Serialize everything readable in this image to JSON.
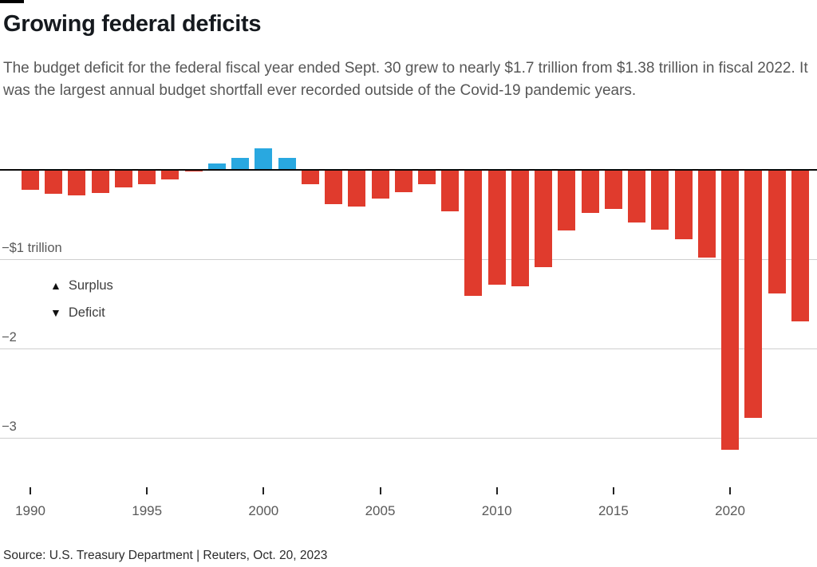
{
  "header": {
    "title": "Growing federal deficits",
    "subtitle": "The budget deficit for the federal fiscal year ended Sept. 30 grew to nearly $1.7 trillion from $1.38 trillion in fiscal 2022. It was the largest annual budget shortfall ever recorded outside of the Covid-19 pandemic years."
  },
  "legend": {
    "surplus_marker": "▲",
    "surplus_label": "Surplus",
    "deficit_marker": "▼",
    "deficit_label": "Deficit"
  },
  "footer": {
    "source": "Source: U.S. Treasury Department | Reuters, Oct. 20, 2023"
  },
  "colors": {
    "deficit": "#e03b2d",
    "surplus": "#29a8e0",
    "gridline": "#cfcfcf",
    "zero_line": "#0a0a0a",
    "axis_text": "#595959"
  },
  "chart_data": {
    "type": "bar",
    "title": "Growing federal deficits",
    "xlabel": "",
    "ylabel": "",
    "units": "trillion USD",
    "ylim": [
      -3.4,
      0.4
    ],
    "x": [
      1990,
      1991,
      1992,
      1993,
      1994,
      1995,
      1996,
      1997,
      1998,
      1999,
      2000,
      2001,
      2002,
      2003,
      2004,
      2005,
      2006,
      2007,
      2008,
      2009,
      2010,
      2011,
      2012,
      2013,
      2014,
      2015,
      2016,
      2017,
      2018,
      2019,
      2020,
      2021,
      2022,
      2023
    ],
    "values": [
      -0.22,
      -0.27,
      -0.29,
      -0.26,
      -0.2,
      -0.16,
      -0.11,
      -0.02,
      0.07,
      0.13,
      0.24,
      0.13,
      -0.16,
      -0.38,
      -0.41,
      -0.32,
      -0.25,
      -0.16,
      -0.46,
      -1.41,
      -1.29,
      -1.3,
      -1.09,
      -0.68,
      -0.48,
      -0.44,
      -0.59,
      -0.67,
      -0.78,
      -0.98,
      -3.13,
      -2.78,
      -1.38,
      -1.7
    ],
    "y_gridlines": [
      -1,
      -2,
      -3
    ],
    "y_tick_labels": [
      "−$1 trillion",
      "−2",
      "−3"
    ],
    "x_tick_years": [
      1990,
      1995,
      2000,
      2005,
      2010,
      2015,
      2020
    ],
    "legend_position": "inside-left",
    "grid": true
  }
}
